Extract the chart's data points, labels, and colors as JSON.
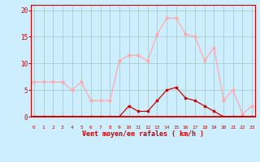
{
  "x": [
    0,
    1,
    2,
    3,
    4,
    5,
    6,
    7,
    8,
    9,
    10,
    11,
    12,
    13,
    14,
    15,
    16,
    17,
    18,
    19,
    20,
    21,
    22,
    23
  ],
  "rafales": [
    6.5,
    6.5,
    6.5,
    6.5,
    5.0,
    6.5,
    3.0,
    3.0,
    3.0,
    10.5,
    11.5,
    11.5,
    10.5,
    15.5,
    18.5,
    18.5,
    15.5,
    15.0,
    10.5,
    13.0,
    3.0,
    5.0,
    0.5,
    2.0
  ],
  "moyen": [
    0,
    0,
    0,
    0,
    0,
    0,
    0,
    0,
    0,
    0,
    2.0,
    1.0,
    1.0,
    3.0,
    5.0,
    5.5,
    3.5,
    3.0,
    2.0,
    1.0,
    0,
    0,
    0,
    0
  ],
  "line_color_rafales": "#ffaaaa",
  "line_color_moyen": "#cc0000",
  "bg_color": "#cceeff",
  "grid_color": "#aacccc",
  "axis_color": "#cc0000",
  "xlabel": "Vent moyen/en rafales ( km/h )",
  "ylabel_ticks": [
    0,
    5,
    10,
    15,
    20
  ],
  "xlim": [
    0,
    23
  ],
  "ylim": [
    0,
    21
  ]
}
